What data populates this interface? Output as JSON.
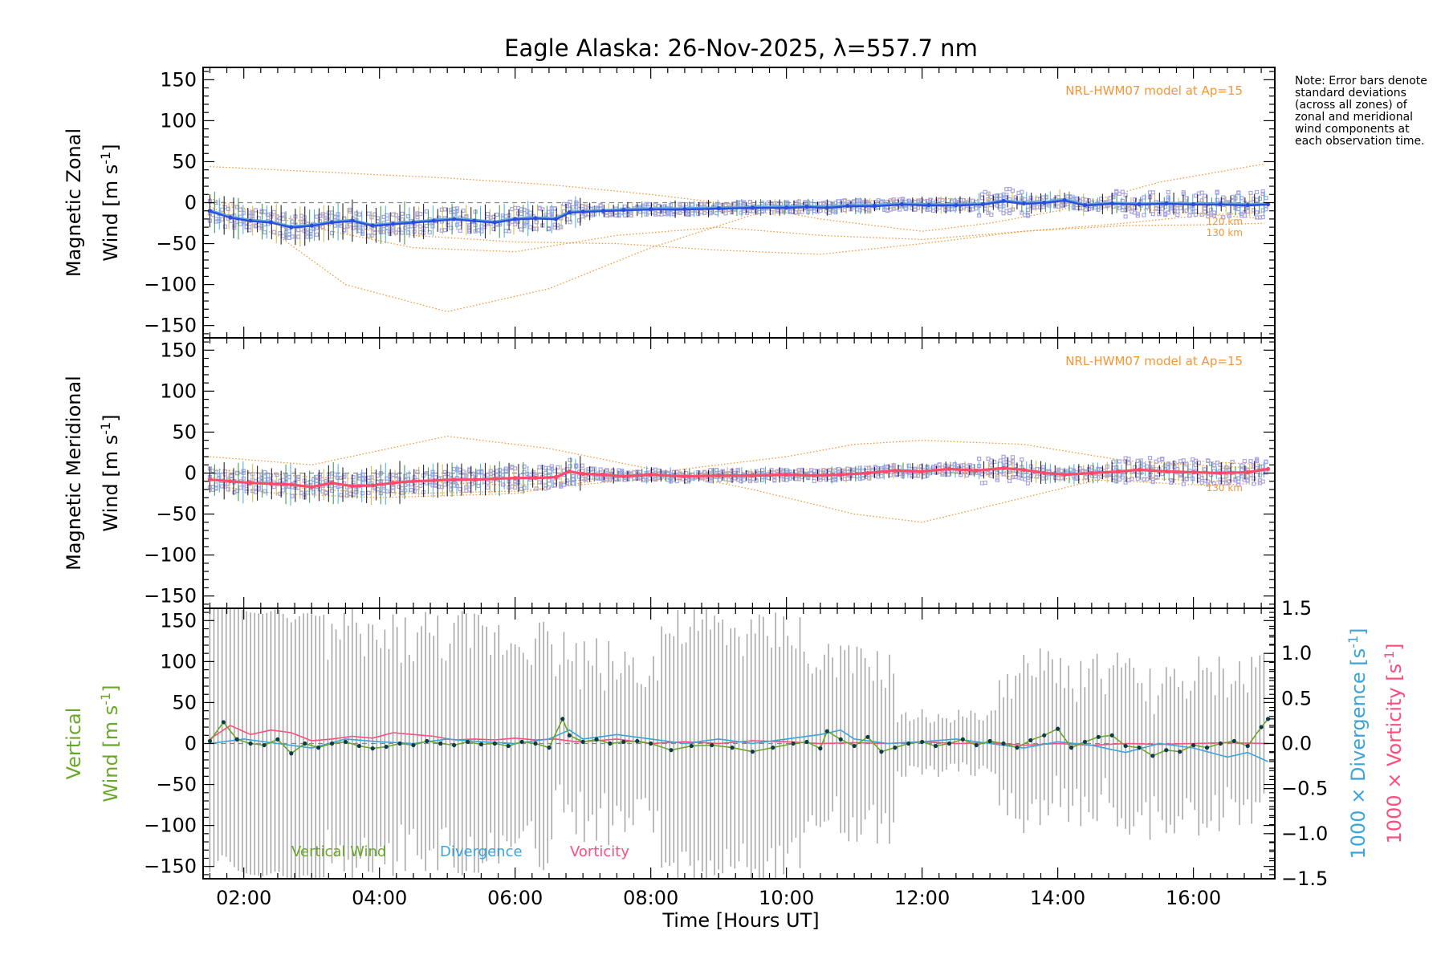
{
  "title": "Eagle Alaska: 26-Nov-2025, λ=557.7 nm",
  "note": "Note: Error bars denote standard deviations (across all zones) of zonal and meridional wind components at each observation time.",
  "colors": {
    "zonal": "#2b4ce0",
    "zonal_light": "#5aa9d6",
    "meridional": "#ff4a6a",
    "model": "#f59636",
    "scatter": "#aaa6e6",
    "vertical": "#6aa82a",
    "divergence": "#3aa4dc",
    "vorticity": "#ff4d7d",
    "errorbar": "#7a7a7a"
  },
  "chart_data": [
    {
      "id": "zonal",
      "type": "line",
      "ylabel_top": "Magnetic Zonal",
      "ylabel_bottom": "Wind [m s",
      "ylabel_sup": "-1",
      "ylabel_close": "]",
      "ylim": [
        -165,
        165
      ],
      "yticks": [
        -150,
        -100,
        -50,
        0,
        50,
        100,
        150
      ],
      "model_label": "NRL-HWM07 model at Ap=15",
      "model_alt_labels": [
        "120 km",
        "130 km"
      ],
      "series": {
        "name": "Zonal Wind",
        "x": [
          1.5,
          1.8,
          2.1,
          2.4,
          2.7,
          3.0,
          3.3,
          3.6,
          3.9,
          4.2,
          4.5,
          4.8,
          5.1,
          5.4,
          5.7,
          6.0,
          6.3,
          6.6,
          6.8,
          7.0,
          7.3,
          7.6,
          8.0,
          8.5,
          9.0,
          9.5,
          10.0,
          10.3,
          10.6,
          10.9,
          11.3,
          11.7,
          12.1,
          12.5,
          12.9,
          13.2,
          13.5,
          13.8,
          14.1,
          14.4,
          14.8,
          15.2,
          15.6,
          16.0,
          16.4,
          16.8,
          17.1
        ],
        "y": [
          -10,
          -18,
          -22,
          -24,
          -30,
          -28,
          -24,
          -22,
          -28,
          -26,
          -24,
          -22,
          -20,
          -22,
          -24,
          -20,
          -19,
          -20,
          -12,
          -11,
          -10,
          -9,
          -8,
          -8,
          -7,
          -6,
          -6,
          -5,
          -6,
          -4,
          -4,
          -2,
          -3,
          -3,
          -2,
          2,
          -1,
          0,
          3,
          -3,
          -1,
          -2,
          -1,
          -2,
          -2,
          -3,
          -2
        ]
      },
      "model_curves": [
        {
          "x": [
            1.5,
            3.0,
            5.0,
            6.5,
            8.0,
            9.5,
            10.5,
            12.0,
            13.0,
            14.0,
            15.5,
            17.1
          ],
          "y": [
            44,
            38,
            30,
            22,
            10,
            -5,
            -20,
            -35,
            -25,
            -10,
            25,
            48
          ]
        },
        {
          "x": [
            1.5,
            2.5,
            3.5,
            5.0,
            6.5,
            8.0,
            9.5,
            11.0,
            12.5,
            14.0,
            15.5,
            17.1
          ],
          "y": [
            -5,
            -40,
            -100,
            -133,
            -105,
            -55,
            -15,
            2,
            5,
            0,
            -10,
            -20
          ]
        },
        {
          "x": [
            1.5,
            3.0,
            4.5,
            6.0,
            7.5,
            9.0,
            10.5,
            12.0,
            13.5,
            15.0,
            16.2,
            17.1
          ],
          "y": [
            5,
            -30,
            -55,
            -60,
            -40,
            -30,
            -40,
            -45,
            -35,
            -28,
            -27,
            -25
          ]
        },
        {
          "x": [
            1.5,
            3.0,
            4.5,
            6.0,
            7.5,
            9.0,
            10.5,
            12.0,
            13.5,
            15.0,
            16.2,
            17.1
          ],
          "y": [
            0,
            -25,
            -40,
            -48,
            -50,
            -58,
            -63,
            -50,
            -35,
            -25,
            -15,
            -12
          ]
        }
      ]
    },
    {
      "id": "meridional",
      "type": "line",
      "ylabel_top": "Magnetic Meridional",
      "ylabel_bottom": "Wind [m s",
      "ylabel_sup": "-1",
      "ylabel_close": "]",
      "ylim": [
        -165,
        165
      ],
      "yticks": [
        -150,
        -100,
        -50,
        0,
        50,
        100,
        150
      ],
      "model_label": "NRL-HWM07 model at Ap=15",
      "model_alt_labels": [
        "130 km"
      ],
      "series": {
        "name": "Meridional Wind",
        "x": [
          1.5,
          1.8,
          2.1,
          2.4,
          2.7,
          3.0,
          3.3,
          3.6,
          3.9,
          4.2,
          4.5,
          4.8,
          5.1,
          5.4,
          5.7,
          6.0,
          6.3,
          6.6,
          6.8,
          7.0,
          7.3,
          7.6,
          8.0,
          8.5,
          9.0,
          9.5,
          10.0,
          10.4,
          10.8,
          11.2,
          11.6,
          12.0,
          12.4,
          12.8,
          13.2,
          13.5,
          13.8,
          14.1,
          14.5,
          14.9,
          15.2,
          15.6,
          16.0,
          16.4,
          16.8,
          17.1
        ],
        "y": [
          -8,
          -10,
          -12,
          -13,
          -14,
          -17,
          -12,
          -16,
          -15,
          -12,
          -10,
          -9,
          -8,
          -8,
          -7,
          -6,
          -6,
          -5,
          2,
          -1,
          -2,
          -4,
          -2,
          -4,
          -3,
          -3,
          -2,
          -3,
          -2,
          0,
          3,
          2,
          5,
          3,
          6,
          4,
          0,
          -2,
          0,
          2,
          4,
          2,
          1,
          0,
          1,
          5
        ]
      },
      "model_curves": [
        {
          "x": [
            1.5,
            3.0,
            5.0,
            6.5,
            8.0,
            9.5,
            11.0,
            12.0,
            13.5,
            15.0,
            16.0,
            17.1
          ],
          "y": [
            20,
            10,
            45,
            30,
            5,
            -20,
            -50,
            -60,
            -30,
            0,
            15,
            10
          ]
        },
        {
          "x": [
            1.5,
            2.5,
            4.0,
            6.0,
            7.5,
            9.0,
            10.0,
            11.0,
            12.0,
            13.5,
            15.0,
            17.1
          ],
          "y": [
            -15,
            -25,
            -30,
            -25,
            -5,
            10,
            20,
            35,
            40,
            35,
            15,
            5
          ]
        },
        {
          "x": [
            1.5,
            3.0,
            4.5,
            6.0,
            7.5,
            9.0,
            10.5,
            12.0,
            13.5,
            15.0,
            16.2,
            17.1
          ],
          "y": [
            -5,
            -20,
            -25,
            -22,
            -10,
            -5,
            -2,
            0,
            2,
            -5,
            -10,
            -8
          ]
        },
        {
          "x": [
            1.5,
            3.0,
            4.5,
            6.0,
            7.5,
            9.0,
            10.5,
            12.0,
            13.5,
            15.0,
            16.2,
            17.1
          ],
          "y": [
            5,
            -5,
            -10,
            -15,
            -5,
            0,
            5,
            2,
            -5,
            -10,
            -15,
            -12
          ]
        }
      ]
    },
    {
      "id": "vertical",
      "type": "line",
      "ylabel_top": "Vertical",
      "ylabel_bottom": "Wind [m s",
      "ylabel_sup": "-1",
      "ylabel_close": "]",
      "ylim": [
        -165,
        165
      ],
      "yticks": [
        -150,
        -100,
        -50,
        0,
        50,
        100,
        150
      ],
      "y2lim": [
        -1.5,
        1.5
      ],
      "y2ticks": [
        -1.5,
        -1.0,
        -0.5,
        0.0,
        0.5,
        1.0,
        1.5
      ],
      "y2label_div": "1000 × Divergence [s",
      "y2label_vort": "1000 × Vorticity [s",
      "y2label_sup": "-1",
      "y2label_close": "]",
      "legend": [
        "Vertical Wind",
        "Divergence",
        "Vorticity"
      ],
      "xlabel": "Time [Hours UT]",
      "xticks": [
        2,
        4,
        6,
        8,
        10,
        12,
        14,
        16
      ],
      "xtick_labels": [
        "02:00",
        "04:00",
        "06:00",
        "08:00",
        "10:00",
        "12:00",
        "14:00",
        "16:00"
      ],
      "xlim": [
        1.4,
        17.2
      ],
      "vertical_wind": {
        "x": [
          1.5,
          1.7,
          1.9,
          2.1,
          2.3,
          2.5,
          2.7,
          2.9,
          3.1,
          3.3,
          3.5,
          3.7,
          3.9,
          4.1,
          4.3,
          4.5,
          4.7,
          4.9,
          5.1,
          5.3,
          5.5,
          5.7,
          5.9,
          6.1,
          6.3,
          6.5,
          6.7,
          6.8,
          7.0,
          7.2,
          7.4,
          7.6,
          7.8,
          8.0,
          8.3,
          8.6,
          8.9,
          9.2,
          9.5,
          9.8,
          10.1,
          10.3,
          10.5,
          10.6,
          10.8,
          11.0,
          11.2,
          11.4,
          11.6,
          11.8,
          12.0,
          12.2,
          12.4,
          12.6,
          12.8,
          13.0,
          13.2,
          13.4,
          13.6,
          13.8,
          14.0,
          14.2,
          14.4,
          14.6,
          14.8,
          15.0,
          15.2,
          15.4,
          15.6,
          15.8,
          16.0,
          16.2,
          16.4,
          16.6,
          16.8,
          17.0,
          17.1
        ],
        "y": [
          3,
          26,
          5,
          0,
          -2,
          5,
          -12,
          0,
          -5,
          0,
          2,
          -3,
          -6,
          -4,
          0,
          -2,
          3,
          0,
          -2,
          2,
          -1,
          0,
          -3,
          2,
          0,
          -5,
          30,
          10,
          2,
          5,
          0,
          2,
          3,
          0,
          -8,
          -3,
          -2,
          -5,
          -10,
          -5,
          0,
          2,
          -6,
          15,
          5,
          -3,
          8,
          -10,
          -5,
          0,
          2,
          -3,
          0,
          5,
          -2,
          3,
          0,
          -5,
          4,
          10,
          18,
          -5,
          2,
          8,
          10,
          -3,
          -5,
          -15,
          -8,
          -10,
          -2,
          -5,
          0,
          3,
          -3,
          20,
          30
        ]
      },
      "divergence": {
        "x": [
          1.5,
          2.0,
          2.5,
          3.0,
          3.5,
          4.0,
          4.5,
          5.0,
          5.5,
          6.0,
          6.5,
          6.8,
          7.0,
          7.5,
          8.0,
          8.5,
          9.0,
          9.5,
          10.0,
          10.5,
          10.8,
          11.0,
          11.5,
          12.0,
          12.5,
          13.0,
          13.5,
          14.0,
          14.5,
          15.0,
          15.5,
          16.0,
          16.5,
          16.8,
          17.1
        ],
        "y": [
          0.0,
          0.05,
          0.0,
          -0.05,
          0.05,
          0.02,
          0.0,
          0.05,
          0.02,
          0.0,
          0.05,
          0.15,
          0.05,
          0.1,
          0.05,
          0.0,
          0.05,
          0.0,
          0.05,
          0.1,
          0.15,
          0.05,
          0.0,
          0.02,
          0.05,
          0.0,
          -0.05,
          0.02,
          -0.02,
          -0.1,
          0.0,
          -0.05,
          -0.15,
          -0.1,
          -0.2
        ]
      },
      "vorticity": {
        "x": [
          1.5,
          1.8,
          2.1,
          2.4,
          2.7,
          3.0,
          3.3,
          3.6,
          3.9,
          4.2,
          4.5,
          4.8,
          5.1,
          5.4,
          5.7,
          6.0,
          6.3,
          6.6,
          6.9,
          7.2,
          7.5,
          8.0,
          8.5,
          9.0,
          9.5,
          10.0,
          10.5,
          11.0,
          11.5,
          12.0,
          12.5,
          13.0,
          13.5,
          14.0,
          14.5,
          15.0,
          15.5,
          16.0,
          16.5,
          17.1
        ],
        "y": [
          0.05,
          0.2,
          0.1,
          0.15,
          0.12,
          0.03,
          0.05,
          0.08,
          0.06,
          0.12,
          0.1,
          0.08,
          0.04,
          0.05,
          0.04,
          0.06,
          0.04,
          0.05,
          0.02,
          0.03,
          0.05,
          0.0,
          0.02,
          0.0,
          0.03,
          0.02,
          0.0,
          0.01,
          0.0,
          0.02,
          0.0,
          0.01,
          -0.02,
          0.0,
          -0.02,
          0.0,
          -0.01,
          0.0,
          0.01,
          0.0
        ]
      }
    }
  ]
}
